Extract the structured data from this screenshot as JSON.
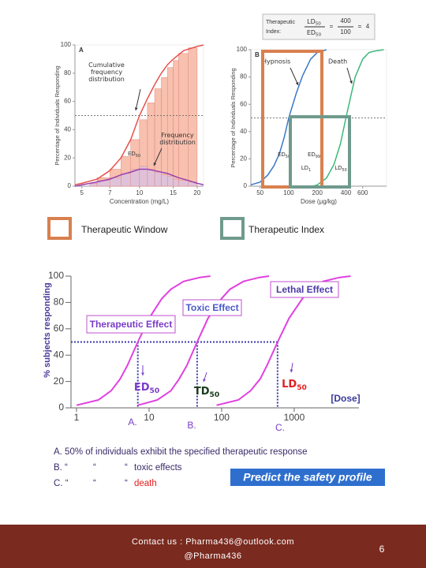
{
  "formula": {
    "title": [
      "Therapeutic",
      "Index:"
    ],
    "numerator": {
      "text": "LD",
      "sub": "50"
    },
    "denominator": {
      "text": "ED",
      "sub": "50"
    },
    "equals": "=",
    "numerator_value": 400,
    "denominator_value": 100,
    "result": 4
  },
  "legend": [
    {
      "label": "Therapeutic Window",
      "color": "#d9804e"
    },
    {
      "label": "Therapeutic Index",
      "color": "#6f9a8d"
    }
  ],
  "chart_data": [
    {
      "type": "line",
      "panel_label": "A",
      "y_label": "Percentage of Individuals Responding",
      "x_label": "Concentration (mg/L)",
      "x_scale": "log",
      "xlim": [
        4.6,
        21.6
      ],
      "ylim": [
        0,
        100
      ],
      "xticks": [
        5,
        7,
        10,
        15,
        20
      ],
      "yticks": [
        0,
        20,
        40,
        60,
        80,
        100
      ],
      "reference_y": 50,
      "histograms": [
        {
          "bins": [
            5.5,
            6,
            7,
            8,
            9,
            10,
            11,
            12,
            13,
            14,
            15,
            16,
            18,
            20
          ],
          "counts": [
            2,
            6,
            12,
            21,
            33,
            47,
            59,
            69,
            77,
            84,
            89,
            94,
            98
          ],
          "color": "#f6b09a"
        },
        {
          "bins": [
            5.5,
            6,
            7,
            8,
            9,
            10,
            11,
            12,
            13,
            14,
            15,
            16,
            18,
            20
          ],
          "counts": [
            2,
            4,
            6,
            9,
            12,
            14,
            12,
            10,
            8,
            7,
            5,
            4,
            3
          ],
          "color": "#d8c2e4"
        }
      ],
      "series": [
        {
          "name": "Cumulative frequency distribution",
          "color": "#e8504a",
          "x": [
            4.6,
            5,
            6,
            7,
            8,
            9,
            10,
            11,
            12,
            13,
            14,
            15,
            17,
            20,
            21.6
          ],
          "values": [
            1,
            2,
            5,
            11,
            20,
            33,
            50,
            62,
            72,
            80,
            86,
            90,
            96,
            99,
            100
          ]
        },
        {
          "name": "Frequency distribution",
          "color": "#9b3fb0",
          "x": [
            4.6,
            6,
            7,
            8,
            9,
            10,
            11,
            12,
            14,
            16,
            18,
            20,
            21.6
          ],
          "values": [
            0,
            3,
            5,
            8,
            10,
            12,
            12,
            11,
            9,
            6,
            4,
            2,
            1
          ]
        }
      ],
      "annotations": [
        {
          "text": "ED",
          "sub": "50"
        }
      ]
    },
    {
      "type": "line",
      "panel_label": "B",
      "y_label": "Percentage of Individuals Responding",
      "x_label": "Dose (μg/kg)",
      "x_scale": "log",
      "xlim": [
        40,
        1070
      ],
      "ylim": [
        0,
        100
      ],
      "xticks": [
        50,
        100,
        200,
        400,
        600
      ],
      "yticks": [
        0,
        20,
        40,
        60,
        80,
        100
      ],
      "reference_y": 50,
      "series": [
        {
          "name": "Hypnosis",
          "color": "#3a78c8",
          "x": [
            40,
            50,
            60,
            70,
            80,
            90,
            100,
            120,
            140,
            170,
            200,
            250
          ],
          "values": [
            1,
            3,
            8,
            15,
            24,
            36,
            50,
            68,
            81,
            93,
            98,
            100
          ]
        },
        {
          "name": "Death",
          "color": "#3cb878",
          "x": [
            180,
            200,
            250,
            300,
            350,
            400,
            450,
            500,
            600,
            700,
            800,
            1000
          ],
          "values": [
            0,
            1,
            6,
            16,
            31,
            50,
            66,
            80,
            93,
            98,
            99,
            100
          ]
        }
      ],
      "annotations": [
        {
          "text": "ED",
          "sub": "50"
        },
        {
          "text": "ED",
          "sub": "99"
        },
        {
          "text": "LD",
          "sub": "1"
        },
        {
          "text": "LD",
          "sub": "50"
        }
      ]
    },
    {
      "type": "line",
      "y_label": "% subjects responding",
      "x_label": "[Dose]",
      "x_scale": "log",
      "xlim": [
        0.84,
        7800
      ],
      "ylim": [
        0,
        100
      ],
      "xticks": [
        1,
        10,
        100,
        1000
      ],
      "yticks": [
        0,
        20,
        40,
        60,
        80,
        100
      ],
      "reference_y": 50,
      "series": [
        {
          "name": "Therapeutic Effect",
          "color": "#e040e0",
          "x": [
            1,
            2,
            3,
            4,
            5,
            7,
            10,
            15,
            20,
            30,
            50,
            70
          ],
          "values": [
            2,
            6,
            13,
            22,
            32,
            50,
            68,
            83,
            90,
            96,
            99,
            100
          ]
        },
        {
          "name": "Toxic Effect",
          "color": "#e040e0",
          "x": [
            7,
            13,
            20,
            26,
            33,
            46,
            65,
            100,
            130,
            200,
            330,
            450
          ],
          "values": [
            2,
            6,
            13,
            22,
            32,
            50,
            68,
            83,
            90,
            96,
            99,
            100
          ]
        },
        {
          "name": "Lethal Effect",
          "color": "#e040e0",
          "x": [
            85,
            170,
            250,
            340,
            420,
            590,
            850,
            1300,
            1700,
            2500,
            4200,
            6000
          ],
          "values": [
            2,
            6,
            13,
            22,
            32,
            50,
            68,
            83,
            90,
            96,
            99,
            100
          ]
        }
      ],
      "markers": [
        {
          "text": "ED",
          "sub": "50",
          "x": 7,
          "point": "A.",
          "color": "#7a3cc8"
        },
        {
          "text": "TD",
          "sub": "50",
          "x": 46,
          "point": "B.",
          "color": "#1a3a1a"
        },
        {
          "text": "LD",
          "sub": "50",
          "x": 590,
          "point": "C.",
          "color": "#e02020"
        }
      ]
    }
  ],
  "notes": [
    [
      {
        "text": "A. 50% of individuals exhibit the specified  therapeutic response",
        "color": "#3a2a6a"
      }
    ],
    [
      {
        "text": "B. “",
        "color": "#3a2a6a"
      },
      {
        "text": "“",
        "color": "#3a2a6a"
      },
      {
        "text": "“",
        "color": "#3a2a6a"
      },
      {
        "text": "toxic effects",
        "color": "#3a2a6a"
      }
    ],
    [
      {
        "text": "C. “",
        "color": "#3a2a6a"
      },
      {
        "text": "“",
        "color": "#3a2a6a"
      },
      {
        "text": "“",
        "color": "#3a2a6a"
      },
      {
        "text": "death",
        "color": "#e02020"
      }
    ]
  ],
  "banner": "Predict the safety profile",
  "footer": {
    "contact": "Contact us : Pharma436@outlook.com",
    "handle": "@Pharma436",
    "page_number": 6
  }
}
